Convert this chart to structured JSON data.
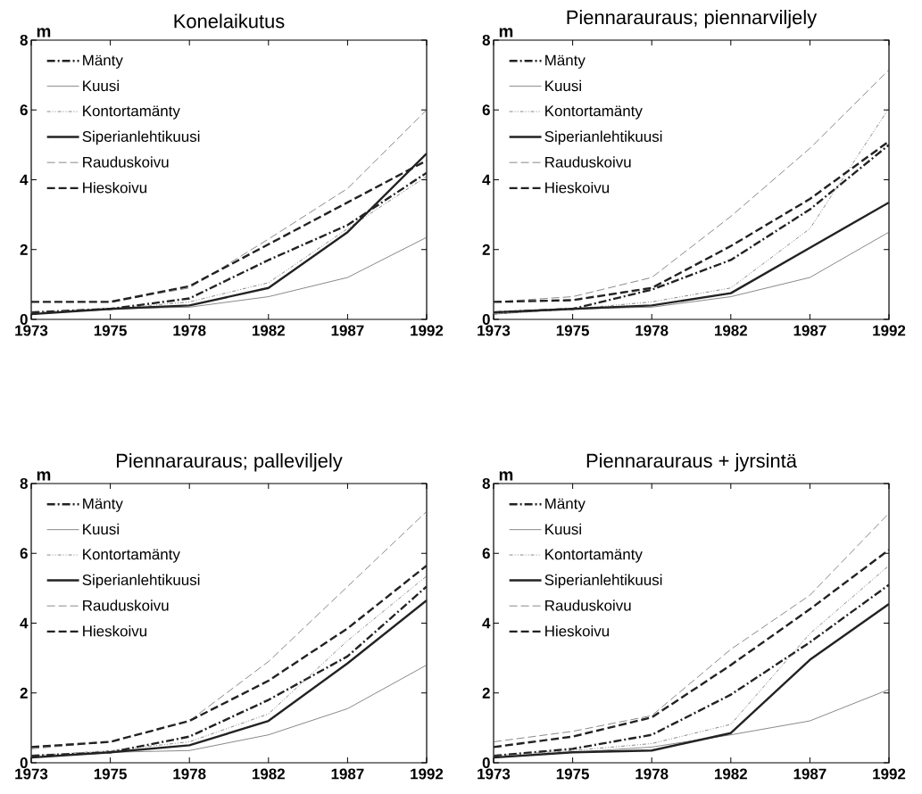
{
  "chart_data": [
    {
      "type": "line",
      "title": "Konelaikutus",
      "ylabel": "m",
      "categories": [
        "1973",
        "1975",
        "1978",
        "1982",
        "1987",
        "1992"
      ],
      "ylim": [
        0,
        8
      ],
      "yticks": [
        0,
        2,
        4,
        6,
        8
      ],
      "legend": "top left",
      "grid": false,
      "marker": "none",
      "series": [
        {
          "name": "Mänty",
          "color": "#222222",
          "line_style": "dash-dot",
          "values": [
            0.2,
            0.3,
            0.6,
            1.7,
            2.7,
            4.2
          ]
        },
        {
          "name": "Kuusi",
          "color": "#555555",
          "line_style": "solid",
          "values": [
            0.15,
            0.3,
            0.35,
            0.65,
            1.2,
            2.35
          ]
        },
        {
          "name": "Kontortamänty",
          "color": "#555555",
          "line_style": "dash-dot-dot",
          "values": [
            0.2,
            0.3,
            0.5,
            1.05,
            2.6,
            4.1
          ]
        },
        {
          "name": "Siperianlehtikuusi",
          "color": "#222222",
          "line_style": "solid",
          "values": [
            0.15,
            0.3,
            0.4,
            0.9,
            2.5,
            4.75
          ]
        },
        {
          "name": "Rauduskoivu",
          "color": "#555555",
          "line_style": "dashed",
          "values": [
            0.5,
            0.5,
            0.9,
            2.3,
            3.75,
            6.0
          ]
        },
        {
          "name": "Hieskoivu",
          "color": "#222222",
          "line_style": "dashed",
          "values": [
            0.5,
            0.5,
            0.95,
            2.15,
            3.35,
            4.55
          ]
        }
      ]
    },
    {
      "type": "line",
      "title": "Piennarauraus; piennarviljely",
      "ylabel": "m",
      "categories": [
        "1973",
        "1975",
        "1978",
        "1982",
        "1987",
        "1992"
      ],
      "ylim": [
        0,
        8
      ],
      "yticks": [
        0,
        2,
        4,
        6,
        8
      ],
      "legend": "top left",
      "grid": false,
      "marker": "none",
      "series": [
        {
          "name": "Mänty",
          "color": "#222222",
          "line_style": "dash-dot",
          "values": [
            0.2,
            0.3,
            0.85,
            1.7,
            3.15,
            5.0
          ]
        },
        {
          "name": "Kuusi",
          "color": "#555555",
          "line_style": "solid",
          "values": [
            0.15,
            0.3,
            0.35,
            0.65,
            1.2,
            2.5
          ]
        },
        {
          "name": "Kontortamänty",
          "color": "#555555",
          "line_style": "dash-dot-dot",
          "values": [
            0.15,
            0.3,
            0.5,
            0.9,
            2.6,
            6.05
          ]
        },
        {
          "name": "Siperianlehtikuusi",
          "color": "#222222",
          "line_style": "solid",
          "values": [
            0.2,
            0.3,
            0.4,
            0.75,
            2.05,
            3.35
          ]
        },
        {
          "name": "Rauduskoivu",
          "color": "#555555",
          "line_style": "dashed",
          "values": [
            0.5,
            0.65,
            1.2,
            2.95,
            4.9,
            7.15
          ]
        },
        {
          "name": "Hieskoivu",
          "color": "#222222",
          "line_style": "dashed",
          "values": [
            0.5,
            0.55,
            0.9,
            2.1,
            3.45,
            5.1
          ]
        }
      ]
    },
    {
      "type": "line",
      "title": "Piennarauraus; palleviljely",
      "ylabel": "m",
      "categories": [
        "1973",
        "1975",
        "1978",
        "1982",
        "1987",
        "1992"
      ],
      "ylim": [
        0,
        8
      ],
      "yticks": [
        0,
        2,
        4,
        6,
        8
      ],
      "legend": "top left",
      "grid": false,
      "marker": "none",
      "series": [
        {
          "name": "Mänty",
          "color": "#222222",
          "line_style": "dash-dot",
          "values": [
            0.2,
            0.3,
            0.75,
            1.8,
            3.05,
            5.05
          ]
        },
        {
          "name": "Kuusi",
          "color": "#555555",
          "line_style": "solid",
          "values": [
            0.15,
            0.3,
            0.35,
            0.8,
            1.55,
            2.8
          ]
        },
        {
          "name": "Kontortamänty",
          "color": "#555555",
          "line_style": "dash-dot-dot",
          "values": [
            0.2,
            0.35,
            0.6,
            1.4,
            3.5,
            5.35
          ]
        },
        {
          "name": "Siperianlehtikuusi",
          "color": "#222222",
          "line_style": "solid",
          "values": [
            0.15,
            0.3,
            0.5,
            1.2,
            2.85,
            4.65
          ]
        },
        {
          "name": "Rauduskoivu",
          "color": "#555555",
          "line_style": "dashed",
          "values": [
            0.4,
            0.6,
            1.2,
            2.9,
            5.05,
            7.2
          ]
        },
        {
          "name": "Hieskoivu",
          "color": "#222222",
          "line_style": "dashed",
          "values": [
            0.45,
            0.6,
            1.2,
            2.35,
            3.85,
            5.65
          ]
        }
      ]
    },
    {
      "type": "line",
      "title": "Piennarauraus + jyrsintä",
      "ylabel": "m",
      "categories": [
        "1973",
        "1975",
        "1978",
        "1982",
        "1987",
        "1992"
      ],
      "ylim": [
        0,
        8
      ],
      "yticks": [
        0,
        2,
        4,
        6,
        8
      ],
      "legend": "top left",
      "grid": false,
      "marker": "none",
      "series": [
        {
          "name": "Mänty",
          "color": "#222222",
          "line_style": "dash-dot",
          "values": [
            0.2,
            0.4,
            0.8,
            1.95,
            3.45,
            5.1
          ]
        },
        {
          "name": "Kuusi",
          "color": "#555555",
          "line_style": "solid",
          "values": [
            0.15,
            0.3,
            0.45,
            0.8,
            1.2,
            2.1
          ]
        },
        {
          "name": "Kontortamänty",
          "color": "#555555",
          "line_style": "dash-dot-dot",
          "values": [
            0.2,
            0.35,
            0.55,
            1.1,
            3.7,
            5.65
          ]
        },
        {
          "name": "Siperianlehtikuusi",
          "color": "#222222",
          "line_style": "solid",
          "values": [
            0.15,
            0.3,
            0.35,
            0.85,
            2.95,
            4.55
          ]
        },
        {
          "name": "Rauduskoivu",
          "color": "#555555",
          "line_style": "dashed",
          "values": [
            0.6,
            0.9,
            1.35,
            3.25,
            4.8,
            7.15
          ]
        },
        {
          "name": "Hieskoivu",
          "color": "#222222",
          "line_style": "dashed",
          "values": [
            0.45,
            0.75,
            1.3,
            2.8,
            4.4,
            6.1
          ]
        }
      ]
    }
  ]
}
